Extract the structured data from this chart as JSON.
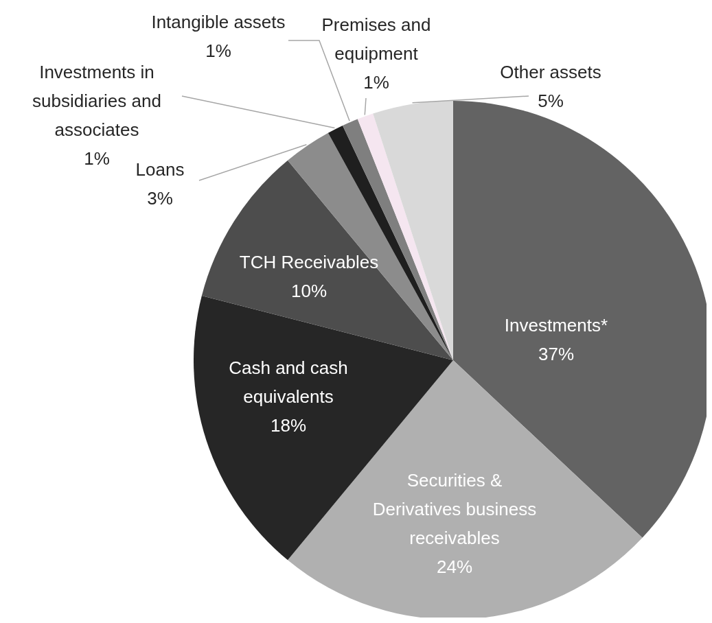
{
  "chart_data": {
    "type": "pie",
    "categories": [
      "Investments*",
      "Securities & Derivatives business receivables",
      "Cash and cash equivalents",
      "TCH Receivables",
      "Loans",
      "Investments in subsidiaries and associates",
      "Intangible assets",
      "Premises and equipment",
      "Other assets"
    ],
    "values": [
      37,
      24,
      18,
      10,
      3,
      1,
      1,
      1,
      5
    ],
    "value_labels": [
      "37%",
      "24%",
      "18%",
      "10%",
      "3%",
      "1%",
      "1%",
      "1%",
      "5%"
    ],
    "colors": [
      "#636363",
      "#b0b0b0",
      "#262626",
      "#4d4d4d",
      "#8c8c8c",
      "#1f1f1f",
      "#7f7f7f",
      "#f5e6f0",
      "#d9d9d9"
    ],
    "legend": false
  }
}
